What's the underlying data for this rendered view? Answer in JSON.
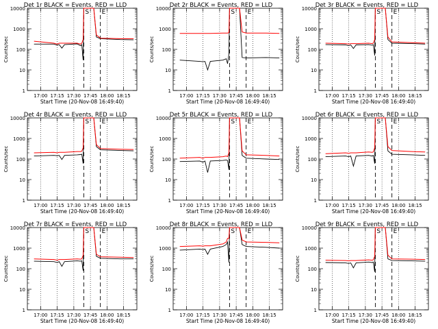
{
  "chart_data": [
    {
      "title": "Det 1r BLACK = Events, RED = LLD",
      "black": [
        [
          16.9,
          180
        ],
        [
          17.2,
          180
        ],
        [
          17.25,
          160
        ],
        [
          17.28,
          170
        ],
        [
          17.32,
          115
        ],
        [
          17.36,
          170
        ],
        [
          17.55,
          185
        ],
        [
          17.6,
          150
        ],
        [
          17.62,
          170
        ],
        [
          17.64,
          30
        ],
        [
          17.65,
          10000
        ],
        [
          17.8,
          10000
        ],
        [
          17.84,
          400
        ],
        [
          17.9,
          330
        ],
        [
          18.2,
          300
        ],
        [
          18.4,
          290
        ]
      ],
      "red": [
        [
          16.9,
          250
        ],
        [
          17.2,
          200
        ],
        [
          17.25,
          180
        ],
        [
          17.28,
          200
        ],
        [
          17.32,
          200
        ],
        [
          17.36,
          200
        ],
        [
          17.55,
          200
        ],
        [
          17.6,
          180
        ],
        [
          17.62,
          200
        ],
        [
          17.64,
          300
        ],
        [
          17.65,
          10000
        ],
        [
          17.8,
          10000
        ],
        [
          17.84,
          500
        ],
        [
          17.9,
          350
        ],
        [
          18.2,
          330
        ],
        [
          18.4,
          330
        ]
      ]
    },
    {
      "title": "Det 2r BLACK = Events, RED = LLD",
      "black": [
        [
          16.9,
          30
        ],
        [
          17.2,
          26
        ],
        [
          17.25,
          25
        ],
        [
          17.28,
          26
        ],
        [
          17.32,
          10
        ],
        [
          17.36,
          26
        ],
        [
          17.55,
          30
        ],
        [
          17.6,
          35
        ],
        [
          17.62,
          20
        ],
        [
          17.64,
          60
        ],
        [
          17.65,
          10000
        ],
        [
          17.8,
          10000
        ],
        [
          17.84,
          40
        ],
        [
          17.9,
          38
        ],
        [
          18.2,
          40
        ],
        [
          18.4,
          38
        ]
      ],
      "red": [
        [
          16.9,
          600
        ],
        [
          17.2,
          600
        ],
        [
          17.25,
          600
        ],
        [
          17.28,
          600
        ],
        [
          17.32,
          600
        ],
        [
          17.36,
          600
        ],
        [
          17.55,
          620
        ],
        [
          17.6,
          620
        ],
        [
          17.62,
          620
        ],
        [
          17.64,
          650
        ],
        [
          17.65,
          10000
        ],
        [
          17.8,
          10000
        ],
        [
          17.84,
          700
        ],
        [
          17.9,
          620
        ],
        [
          18.2,
          620
        ],
        [
          18.4,
          600
        ]
      ]
    },
    {
      "title": "Det 3r BLACK = Events, RED = LLD",
      "black": [
        [
          16.9,
          170
        ],
        [
          17.2,
          165
        ],
        [
          17.25,
          150
        ],
        [
          17.28,
          165
        ],
        [
          17.32,
          110
        ],
        [
          17.36,
          165
        ],
        [
          17.55,
          170
        ],
        [
          17.6,
          160
        ],
        [
          17.62,
          170
        ],
        [
          17.64,
          50
        ],
        [
          17.65,
          10000
        ],
        [
          17.8,
          10000
        ],
        [
          17.84,
          300
        ],
        [
          17.9,
          200
        ],
        [
          18.2,
          190
        ],
        [
          18.4,
          180
        ]
      ],
      "red": [
        [
          16.9,
          200
        ],
        [
          17.2,
          190
        ],
        [
          17.25,
          180
        ],
        [
          17.28,
          190
        ],
        [
          17.32,
          190
        ],
        [
          17.36,
          190
        ],
        [
          17.55,
          200
        ],
        [
          17.6,
          190
        ],
        [
          17.62,
          200
        ],
        [
          17.64,
          300
        ],
        [
          17.65,
          10000
        ],
        [
          17.8,
          10000
        ],
        [
          17.84,
          400
        ],
        [
          17.9,
          230
        ],
        [
          18.2,
          210
        ],
        [
          18.4,
          200
        ]
      ]
    },
    {
      "title": "Det 4r BLACK = Events, RED = LLD",
      "black": [
        [
          16.9,
          140
        ],
        [
          17.2,
          150
        ],
        [
          17.25,
          145
        ],
        [
          17.28,
          150
        ],
        [
          17.32,
          95
        ],
        [
          17.36,
          150
        ],
        [
          17.55,
          160
        ],
        [
          17.6,
          165
        ],
        [
          17.62,
          170
        ],
        [
          17.64,
          60
        ],
        [
          17.65,
          10000
        ],
        [
          17.8,
          10000
        ],
        [
          17.84,
          400
        ],
        [
          17.9,
          280
        ],
        [
          18.2,
          260
        ],
        [
          18.4,
          250
        ]
      ],
      "red": [
        [
          16.9,
          200
        ],
        [
          17.2,
          210
        ],
        [
          17.25,
          200
        ],
        [
          17.28,
          210
        ],
        [
          17.32,
          210
        ],
        [
          17.36,
          210
        ],
        [
          17.55,
          230
        ],
        [
          17.6,
          230
        ],
        [
          17.62,
          240
        ],
        [
          17.64,
          350
        ],
        [
          17.65,
          10000
        ],
        [
          17.8,
          10000
        ],
        [
          17.84,
          500
        ],
        [
          17.9,
          320
        ],
        [
          18.2,
          300
        ],
        [
          18.4,
          290
        ]
      ]
    },
    {
      "title": "Det 5r BLACK = Events, RED = LLD",
      "black": [
        [
          16.9,
          75
        ],
        [
          17.2,
          80
        ],
        [
          17.25,
          70
        ],
        [
          17.28,
          80
        ],
        [
          17.32,
          22
        ],
        [
          17.36,
          80
        ],
        [
          17.55,
          85
        ],
        [
          17.6,
          90
        ],
        [
          17.62,
          85
        ],
        [
          17.64,
          30
        ],
        [
          17.65,
          10000
        ],
        [
          17.8,
          10000
        ],
        [
          17.84,
          150
        ],
        [
          17.9,
          110
        ],
        [
          18.2,
          100
        ],
        [
          18.4,
          95
        ]
      ],
      "red": [
        [
          16.9,
          110
        ],
        [
          17.2,
          120
        ],
        [
          17.25,
          110
        ],
        [
          17.28,
          120
        ],
        [
          17.32,
          120
        ],
        [
          17.36,
          120
        ],
        [
          17.55,
          130
        ],
        [
          17.6,
          140
        ],
        [
          17.62,
          130
        ],
        [
          17.64,
          200
        ],
        [
          17.65,
          10000
        ],
        [
          17.8,
          10000
        ],
        [
          17.84,
          250
        ],
        [
          17.9,
          160
        ],
        [
          18.2,
          150
        ],
        [
          18.4,
          140
        ]
      ]
    },
    {
      "title": "Det 6r BLACK = Events, RED = LLD",
      "black": [
        [
          16.9,
          130
        ],
        [
          17.2,
          140
        ],
        [
          17.25,
          130
        ],
        [
          17.28,
          140
        ],
        [
          17.32,
          45
        ],
        [
          17.36,
          140
        ],
        [
          17.55,
          150
        ],
        [
          17.6,
          140
        ],
        [
          17.62,
          150
        ],
        [
          17.64,
          60
        ],
        [
          17.65,
          10000
        ],
        [
          17.8,
          10000
        ],
        [
          17.84,
          250
        ],
        [
          17.9,
          170
        ],
        [
          18.2,
          160
        ],
        [
          18.4,
          150
        ]
      ],
      "red": [
        [
          16.9,
          180
        ],
        [
          17.2,
          200
        ],
        [
          17.25,
          190
        ],
        [
          17.28,
          200
        ],
        [
          17.32,
          200
        ],
        [
          17.36,
          200
        ],
        [
          17.55,
          220
        ],
        [
          17.6,
          210
        ],
        [
          17.62,
          220
        ],
        [
          17.64,
          350
        ],
        [
          17.65,
          10000
        ],
        [
          17.8,
          10000
        ],
        [
          17.84,
          400
        ],
        [
          17.9,
          260
        ],
        [
          18.2,
          230
        ],
        [
          18.4,
          220
        ]
      ]
    },
    {
      "title": "Det 7r BLACK = Events, RED = LLD",
      "black": [
        [
          16.9,
          230
        ],
        [
          17.2,
          220
        ],
        [
          17.25,
          200
        ],
        [
          17.28,
          220
        ],
        [
          17.32,
          130
        ],
        [
          17.36,
          220
        ],
        [
          17.55,
          240
        ],
        [
          17.6,
          230
        ],
        [
          17.62,
          240
        ],
        [
          17.64,
          80
        ],
        [
          17.65,
          10000
        ],
        [
          17.8,
          10000
        ],
        [
          17.84,
          400
        ],
        [
          17.9,
          320
        ],
        [
          18.2,
          300
        ],
        [
          18.4,
          300
        ]
      ],
      "red": [
        [
          16.9,
          300
        ],
        [
          17.2,
          280
        ],
        [
          17.25,
          260
        ],
        [
          17.28,
          280
        ],
        [
          17.32,
          280
        ],
        [
          17.36,
          280
        ],
        [
          17.55,
          300
        ],
        [
          17.6,
          290
        ],
        [
          17.62,
          300
        ],
        [
          17.64,
          450
        ],
        [
          17.65,
          10000
        ],
        [
          17.8,
          10000
        ],
        [
          17.84,
          500
        ],
        [
          17.9,
          380
        ],
        [
          18.2,
          360
        ],
        [
          18.4,
          350
        ]
      ]
    },
    {
      "title": "Det 8r BLACK = Events, RED = LLD",
      "black": [
        [
          16.9,
          800
        ],
        [
          17.2,
          900
        ],
        [
          17.25,
          850
        ],
        [
          17.28,
          900
        ],
        [
          17.32,
          500
        ],
        [
          17.36,
          900
        ],
        [
          17.55,
          1200
        ],
        [
          17.6,
          1500
        ],
        [
          17.62,
          2000
        ],
        [
          17.64,
          200
        ],
        [
          17.65,
          10000
        ],
        [
          17.8,
          10000
        ],
        [
          17.84,
          1500
        ],
        [
          17.9,
          1200
        ],
        [
          18.2,
          1100
        ],
        [
          18.4,
          1000
        ]
      ],
      "red": [
        [
          16.9,
          1200
        ],
        [
          17.2,
          1300
        ],
        [
          17.25,
          1250
        ],
        [
          17.28,
          1300
        ],
        [
          17.32,
          1300
        ],
        [
          17.36,
          1300
        ],
        [
          17.55,
          1600
        ],
        [
          17.6,
          2000
        ],
        [
          17.62,
          3000
        ],
        [
          17.64,
          3000
        ],
        [
          17.65,
          10000
        ],
        [
          17.8,
          10000
        ],
        [
          17.84,
          2500
        ],
        [
          17.9,
          2000
        ],
        [
          18.2,
          1900
        ],
        [
          18.4,
          1800
        ]
      ]
    },
    {
      "title": "Det 9r BLACK = Events, RED = LLD",
      "black": [
        [
          16.9,
          200
        ],
        [
          17.2,
          190
        ],
        [
          17.25,
          180
        ],
        [
          17.28,
          190
        ],
        [
          17.32,
          110
        ],
        [
          17.36,
          190
        ],
        [
          17.55,
          210
        ],
        [
          17.6,
          200
        ],
        [
          17.62,
          210
        ],
        [
          17.64,
          70
        ],
        [
          17.65,
          10000
        ],
        [
          17.8,
          10000
        ],
        [
          17.84,
          300
        ],
        [
          17.9,
          250
        ],
        [
          18.2,
          240
        ],
        [
          18.4,
          230
        ]
      ],
      "red": [
        [
          16.9,
          260
        ],
        [
          17.2,
          250
        ],
        [
          17.25,
          240
        ],
        [
          17.28,
          250
        ],
        [
          17.32,
          250
        ],
        [
          17.36,
          250
        ],
        [
          17.55,
          270
        ],
        [
          17.6,
          260
        ],
        [
          17.62,
          270
        ],
        [
          17.64,
          400
        ],
        [
          17.65,
          10000
        ],
        [
          17.8,
          10000
        ],
        [
          17.84,
          450
        ],
        [
          17.9,
          300
        ],
        [
          18.2,
          290
        ],
        [
          18.4,
          280
        ]
      ]
    }
  ],
  "common": {
    "type": "line",
    "y_scale": "log",
    "ylim": [
      1,
      10000
    ],
    "xlim": [
      16.8,
      18.45
    ],
    "ylabel": "Counts/sec",
    "xlabel": "Start Time (20-Nov-08 16:49:40)",
    "yticks": [
      1,
      10,
      100,
      1000,
      10000
    ],
    "ytick_labels": [
      "1",
      "10",
      "100",
      "1000",
      "10000"
    ],
    "xticks": [
      17.0,
      17.25,
      17.5,
      17.75,
      18.0,
      18.25
    ],
    "xtick_labels": [
      "17:00",
      "17:15",
      "17:30",
      "17:45",
      "18:00",
      "18:15"
    ],
    "dotted_lines": [
      17.0,
      17.25,
      17.5,
      17.75,
      18.0,
      18.25
    ],
    "dashed_lines": [
      17.65,
      17.9
    ],
    "dashed_line_labels": [
      "S",
      "E"
    ],
    "colors": {
      "black_series": "#000000",
      "red_series": "#ff0000"
    }
  }
}
